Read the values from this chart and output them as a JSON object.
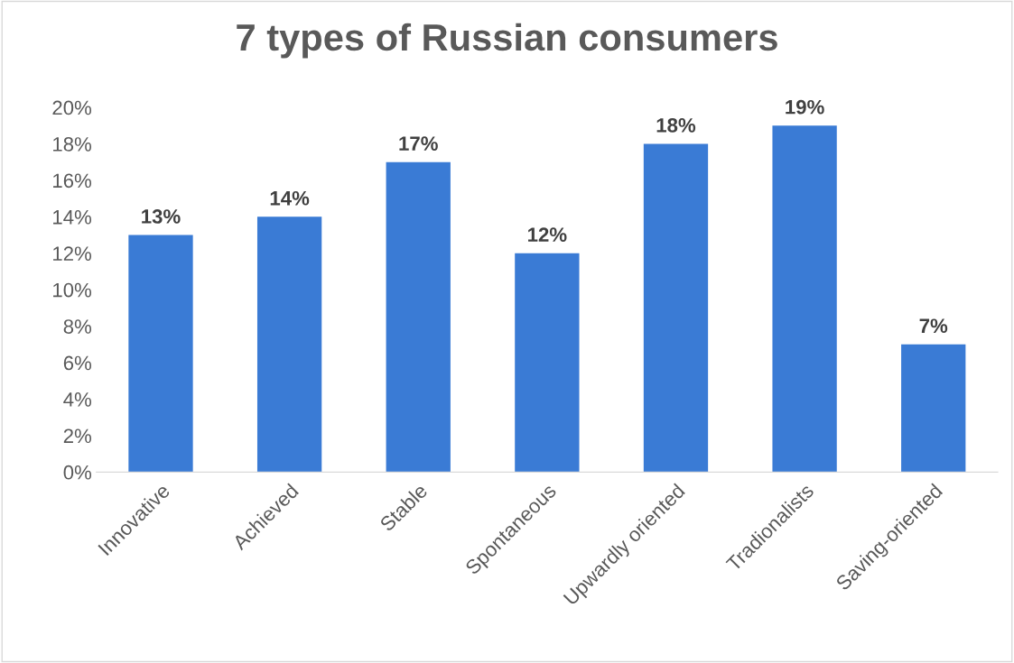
{
  "chart_data": {
    "type": "bar",
    "title": "7 types of Russian consumers",
    "categories": [
      "Innovative",
      "Achieved",
      "Stable",
      "Spontaneous",
      "Upwardly oriented",
      "Tradionalists",
      "Saving-oriented"
    ],
    "values": [
      13,
      14,
      17,
      12,
      18,
      19,
      7
    ],
    "value_labels": [
      "13%",
      "14%",
      "17%",
      "12%",
      "18%",
      "19%",
      "7%"
    ],
    "color": "#3a7bd5",
    "ylim": [
      0,
      20
    ],
    "yticks": [
      {
        "value": 0,
        "label": "0%"
      },
      {
        "value": 2,
        "label": "2%"
      },
      {
        "value": 4,
        "label": "4%"
      },
      {
        "value": 6,
        "label": "6%"
      },
      {
        "value": 8,
        "label": "8%"
      },
      {
        "value": 10,
        "label": "10%"
      },
      {
        "value": 12,
        "label": "12%"
      },
      {
        "value": 14,
        "label": "14%"
      },
      {
        "value": 16,
        "label": "16%"
      },
      {
        "value": 18,
        "label": "18%"
      },
      {
        "value": 20,
        "label": "20%"
      }
    ],
    "grid": false,
    "legend": false
  }
}
